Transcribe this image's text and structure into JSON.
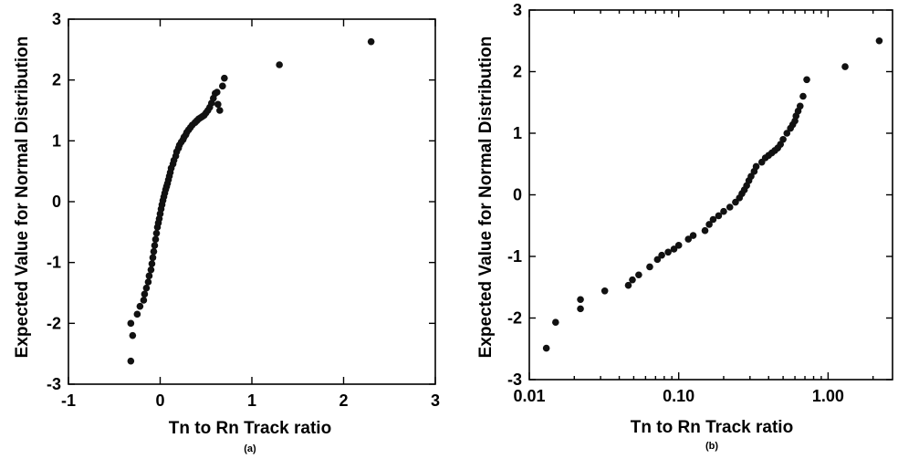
{
  "chart_data": [
    {
      "type": "scatter",
      "title": "",
      "xlabel": "Tn to Rn Track ratio",
      "ylabel": "Expected Value for Normal Distribution",
      "panel_label": "(a)",
      "xscale": "linear",
      "xlim": [
        -1,
        3
      ],
      "ylim": [
        -3,
        3
      ],
      "xticks": [
        -1,
        0,
        1,
        2,
        3
      ],
      "xtick_labels": [
        "-1",
        "0",
        "1",
        "2",
        "3"
      ],
      "yticks": [
        -3,
        -2,
        -1,
        0,
        1,
        2,
        3
      ],
      "ytick_labels": [
        "-3",
        "-2",
        "-1",
        "0",
        "1",
        "2",
        "3"
      ],
      "grid": false,
      "legend": "none",
      "marker_color": "#111111",
      "series": [
        {
          "x": [
            -0.32,
            -0.32,
            -0.3,
            -0.25,
            -0.22,
            -0.18,
            -0.17,
            -0.15,
            -0.13,
            -0.12,
            -0.1,
            -0.09,
            -0.08,
            -0.07,
            -0.06,
            -0.05,
            -0.04,
            -0.03,
            -0.02,
            -0.01,
            0.0,
            0.01,
            0.02,
            0.03,
            0.04,
            0.05,
            0.06,
            0.07,
            0.08,
            0.09,
            0.1,
            0.11,
            0.12,
            0.14,
            0.15,
            0.17,
            0.18,
            0.2,
            0.21,
            0.23,
            0.25,
            0.26,
            0.28,
            0.29,
            0.31,
            0.33,
            0.35,
            0.38,
            0.4,
            0.42,
            0.44,
            0.46,
            0.48,
            0.5,
            0.52,
            0.54,
            0.56,
            0.58,
            0.6,
            0.62,
            0.63,
            0.65,
            0.68,
            0.7,
            1.3,
            2.3
          ],
          "y": [
            -2.62,
            -2.0,
            -2.2,
            -1.85,
            -1.72,
            -1.62,
            -1.52,
            -1.42,
            -1.32,
            -1.22,
            -1.12,
            -1.02,
            -0.92,
            -0.82,
            -0.72,
            -0.62,
            -0.52,
            -0.42,
            -0.35,
            -0.28,
            -0.2,
            -0.12,
            -0.05,
            0.02,
            0.08,
            0.14,
            0.2,
            0.25,
            0.3,
            0.36,
            0.42,
            0.48,
            0.55,
            0.62,
            0.68,
            0.75,
            0.82,
            0.88,
            0.93,
            0.98,
            1.02,
            1.06,
            1.1,
            1.14,
            1.18,
            1.22,
            1.26,
            1.3,
            1.33,
            1.36,
            1.38,
            1.4,
            1.42,
            1.46,
            1.5,
            1.55,
            1.62,
            1.7,
            1.78,
            1.8,
            1.6,
            1.5,
            1.9,
            2.03,
            2.25,
            2.63
          ]
        }
      ]
    },
    {
      "type": "scatter",
      "title": "",
      "xlabel": "Tn to Rn Track ratio",
      "ylabel": "Expected Value for Normal Distribution",
      "panel_label": "(b)",
      "xscale": "log",
      "xlim": [
        0.01,
        2.7
      ],
      "ylim": [
        -3,
        3
      ],
      "xticks": [
        0.01,
        0.1,
        1.0
      ],
      "xtick_labels": [
        "0.01",
        "0.10",
        "1.00"
      ],
      "yticks": [
        -3,
        -2,
        -1,
        0,
        1,
        2,
        3
      ],
      "ytick_labels": [
        "-3",
        "-2",
        "-1",
        "0",
        "1",
        "2",
        "3"
      ],
      "grid": false,
      "legend": "none",
      "marker_color": "#111111",
      "series": [
        {
          "x": [
            0.013,
            0.015,
            0.022,
            0.022,
            0.032,
            0.046,
            0.049,
            0.054,
            0.064,
            0.072,
            0.077,
            0.085,
            0.093,
            0.1,
            0.116,
            0.125,
            0.15,
            0.16,
            0.17,
            0.185,
            0.2,
            0.22,
            0.24,
            0.255,
            0.265,
            0.275,
            0.285,
            0.295,
            0.305,
            0.32,
            0.33,
            0.36,
            0.38,
            0.4,
            0.42,
            0.44,
            0.46,
            0.48,
            0.5,
            0.53,
            0.56,
            0.58,
            0.6,
            0.61,
            0.63,
            0.65,
            0.68,
            0.72,
            1.3,
            2.2
          ],
          "y": [
            -2.49,
            -2.07,
            -1.85,
            -1.7,
            -1.56,
            -1.47,
            -1.38,
            -1.3,
            -1.17,
            -1.05,
            -0.98,
            -0.93,
            -0.88,
            -0.82,
            -0.72,
            -0.66,
            -0.58,
            -0.48,
            -0.4,
            -0.34,
            -0.27,
            -0.2,
            -0.12,
            -0.05,
            0.02,
            0.08,
            0.15,
            0.23,
            0.3,
            0.38,
            0.46,
            0.53,
            0.6,
            0.64,
            0.68,
            0.72,
            0.76,
            0.82,
            0.9,
            1.0,
            1.08,
            1.14,
            1.2,
            1.28,
            1.36,
            1.44,
            1.6,
            1.87,
            2.08,
            2.5
          ]
        }
      ]
    }
  ]
}
